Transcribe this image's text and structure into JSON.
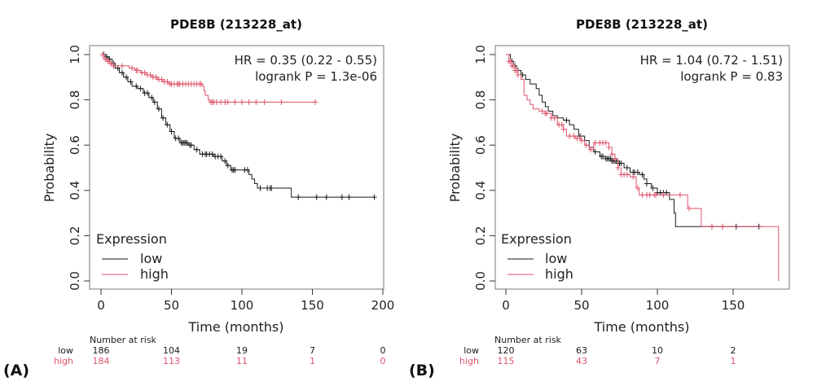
{
  "colors": {
    "low": "#1a1a1a",
    "high": "#df536b",
    "frame": "#777777"
  },
  "chart_data": [
    {
      "type": "line",
      "subtype": "kaplan-meier",
      "panel_label": "(A)",
      "title": "PDE8B (213228_at)",
      "xlabel": "Time (months)",
      "ylabel": "Probability",
      "xlim": [
        0,
        200
      ],
      "ylim": [
        0,
        1
      ],
      "xticks": [
        0,
        50,
        100,
        150,
        200
      ],
      "yticks": [
        0.0,
        0.2,
        0.4,
        0.6,
        0.8,
        1.0
      ],
      "ytick_labels": [
        "0.0",
        "0.2",
        "0.4",
        "0.6",
        "0.8",
        "1.0"
      ],
      "annotations": [
        "HR = 0.35 (0.22 - 0.55)",
        "logrank P = 1.3e-06"
      ],
      "legend": {
        "title": "Expression",
        "placement": "bottom-left",
        "entries": [
          "low",
          "high"
        ]
      },
      "series": [
        {
          "name": "low",
          "steps": [
            [
              0,
              1.0
            ],
            [
              3,
              0.99
            ],
            [
              5,
              0.98
            ],
            [
              8,
              0.96
            ],
            [
              10,
              0.94
            ],
            [
              13,
              0.92
            ],
            [
              16,
              0.9
            ],
            [
              19,
              0.88
            ],
            [
              22,
              0.86
            ],
            [
              26,
              0.85
            ],
            [
              30,
              0.83
            ],
            [
              34,
              0.81
            ],
            [
              37,
              0.79
            ],
            [
              40,
              0.76
            ],
            [
              43,
              0.72
            ],
            [
              46,
              0.69
            ],
            [
              49,
              0.66
            ],
            [
              52,
              0.63
            ],
            [
              56,
              0.61
            ],
            [
              62,
              0.6
            ],
            [
              66,
              0.58
            ],
            [
              70,
              0.56
            ],
            [
              80,
              0.55
            ],
            [
              86,
              0.53
            ],
            [
              89,
              0.51
            ],
            [
              92,
              0.49
            ],
            [
              105,
              0.47
            ],
            [
              107,
              0.45
            ],
            [
              109,
              0.43
            ],
            [
              111,
              0.41
            ],
            [
              132,
              0.41
            ],
            [
              135,
              0.37
            ],
            [
              194,
              0.37
            ]
          ],
          "censor_times": [
            2,
            4,
            6,
            9,
            12,
            15,
            18,
            21,
            25,
            28,
            31,
            33,
            36,
            38,
            41,
            44,
            47,
            50,
            53,
            55,
            57,
            58,
            59,
            60,
            61,
            63,
            64,
            68,
            72,
            74,
            75,
            77,
            79,
            81,
            83,
            85,
            88,
            90,
            93,
            94,
            95,
            102,
            104,
            113,
            118,
            120,
            121,
            140,
            153,
            160,
            171,
            176,
            194
          ]
        },
        {
          "name": "high",
          "steps": [
            [
              0,
              1.0
            ],
            [
              2,
              0.98
            ],
            [
              4,
              0.97
            ],
            [
              6,
              0.96
            ],
            [
              8,
              0.95
            ],
            [
              20,
              0.94
            ],
            [
              24,
              0.93
            ],
            [
              28,
              0.92
            ],
            [
              32,
              0.91
            ],
            [
              36,
              0.9
            ],
            [
              40,
              0.89
            ],
            [
              44,
              0.88
            ],
            [
              48,
              0.87
            ],
            [
              72,
              0.86
            ],
            [
              73,
              0.84
            ],
            [
              74,
              0.82
            ],
            [
              76,
              0.8
            ],
            [
              77,
              0.79
            ],
            [
              152,
              0.79
            ]
          ],
          "censor_times": [
            1,
            3,
            5,
            7,
            9,
            15,
            22,
            25,
            26,
            29,
            31,
            33,
            35,
            37,
            39,
            41,
            43,
            45,
            47,
            49,
            50,
            52,
            54,
            55,
            56,
            58,
            60,
            62,
            64,
            66,
            68,
            70,
            71,
            78,
            79,
            80,
            82,
            85,
            88,
            90,
            95,
            100,
            105,
            110,
            116,
            128,
            152
          ]
        }
      ],
      "risk_table": {
        "header": "Number at risk",
        "times": [
          0,
          50,
          100,
          150,
          200
        ],
        "rows": [
          {
            "group": "low",
            "values": [
              "186",
              "104",
              "19",
              "7",
              "0"
            ]
          },
          {
            "group": "high",
            "values": [
              "184",
              "113",
              "11",
              "1",
              "0"
            ]
          }
        ]
      }
    },
    {
      "type": "line",
      "subtype": "kaplan-meier",
      "panel_label": "(B)",
      "title": "PDE8B (213228_at)",
      "xlabel": "Time (months)",
      "ylabel": "Probability",
      "xlim": [
        0,
        180
      ],
      "ylim": [
        0,
        1
      ],
      "xticks": [
        0,
        50,
        100,
        150
      ],
      "yticks": [
        0.0,
        0.2,
        0.4,
        0.6,
        0.8,
        1.0
      ],
      "ytick_labels": [
        "0.0",
        "0.2",
        "0.4",
        "0.6",
        "0.8",
        "1.0"
      ],
      "annotations": [
        "HR = 1.04 (0.72 - 1.51)",
        "logrank P = 0.83"
      ],
      "legend": {
        "title": "Expression",
        "placement": "bottom-left",
        "entries": [
          "low",
          "high"
        ]
      },
      "series": [
        {
          "name": "low",
          "steps": [
            [
              0,
              1.0
            ],
            [
              3,
              0.97
            ],
            [
              5,
              0.95
            ],
            [
              7,
              0.93
            ],
            [
              10,
              0.91
            ],
            [
              13,
              0.89
            ],
            [
              16,
              0.87
            ],
            [
              20,
              0.85
            ],
            [
              22,
              0.82
            ],
            [
              24,
              0.79
            ],
            [
              26,
              0.77
            ],
            [
              28,
              0.75
            ],
            [
              31,
              0.73
            ],
            [
              34,
              0.72
            ],
            [
              38,
              0.71
            ],
            [
              42,
              0.69
            ],
            [
              45,
              0.67
            ],
            [
              48,
              0.64
            ],
            [
              52,
              0.62
            ],
            [
              55,
              0.59
            ],
            [
              58,
              0.57
            ],
            [
              62,
              0.55
            ],
            [
              66,
              0.54
            ],
            [
              70,
              0.53
            ],
            [
              74,
              0.52
            ],
            [
              78,
              0.5
            ],
            [
              82,
              0.48
            ],
            [
              88,
              0.47
            ],
            [
              91,
              0.45
            ],
            [
              93,
              0.43
            ],
            [
              96,
              0.41
            ],
            [
              100,
              0.39
            ],
            [
              107,
              0.39
            ],
            [
              108,
              0.36
            ],
            [
              111,
              0.3
            ],
            [
              112,
              0.24
            ],
            [
              168,
              0.24
            ]
          ],
          "censor_times": [
            4,
            6,
            8,
            11,
            40,
            49,
            59,
            63,
            64,
            66,
            67,
            68,
            69,
            70,
            71,
            72,
            73,
            74,
            75,
            76,
            80,
            84,
            85,
            87,
            90,
            93,
            97,
            100,
            102,
            104,
            106,
            136,
            143,
            152,
            167
          ]
        },
        {
          "name": "high",
          "steps": [
            [
              0,
              1.0
            ],
            [
              2,
              0.97
            ],
            [
              4,
              0.95
            ],
            [
              6,
              0.93
            ],
            [
              8,
              0.91
            ],
            [
              10,
              0.89
            ],
            [
              12,
              0.82
            ],
            [
              14,
              0.8
            ],
            [
              16,
              0.78
            ],
            [
              18,
              0.76
            ],
            [
              22,
              0.75
            ],
            [
              26,
              0.74
            ],
            [
              30,
              0.72
            ],
            [
              34,
              0.69
            ],
            [
              38,
              0.67
            ],
            [
              40,
              0.64
            ],
            [
              46,
              0.63
            ],
            [
              50,
              0.62
            ],
            [
              52,
              0.6
            ],
            [
              55,
              0.58
            ],
            [
              58,
              0.61
            ],
            [
              68,
              0.59
            ],
            [
              70,
              0.56
            ],
            [
              72,
              0.54
            ],
            [
              74,
              0.5
            ],
            [
              76,
              0.47
            ],
            [
              82,
              0.46
            ],
            [
              86,
              0.41
            ],
            [
              88,
              0.38
            ],
            [
              119,
              0.38
            ],
            [
              120,
              0.32
            ],
            [
              129,
              0.24
            ],
            [
              180,
              0.24
            ],
            [
              180,
              0.0
            ]
          ],
          "censor_times": [
            2,
            3,
            4,
            5,
            6,
            7,
            8,
            24,
            26,
            27,
            30,
            32,
            35,
            37,
            38,
            42,
            45,
            47,
            49,
            50,
            53,
            56,
            59,
            62,
            64,
            66,
            68,
            70,
            72,
            74,
            76,
            78,
            80,
            84,
            87,
            90,
            93,
            95,
            98,
            99,
            104,
            115,
            121,
            136,
            143
          ]
        }
      ],
      "risk_table": {
        "header": "Number at risk",
        "times": [
          0,
          50,
          100,
          150
        ],
        "rows": [
          {
            "group": "low",
            "values": [
              "120",
              "63",
              "10",
              "2"
            ]
          },
          {
            "group": "high",
            "values": [
              "115",
              "43",
              "7",
              "1"
            ]
          }
        ]
      }
    }
  ]
}
